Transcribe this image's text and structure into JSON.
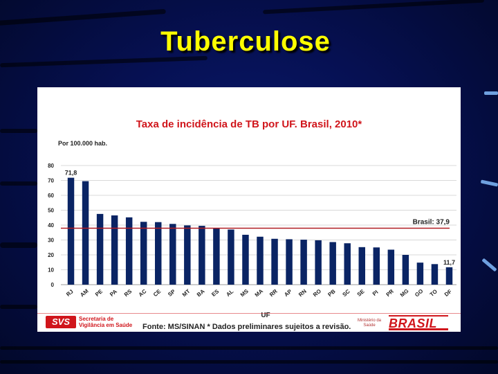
{
  "slide": {
    "title": "Tuberculose"
  },
  "footer": {
    "svs_logo": "SVS",
    "svs_line1": "Secretaria de",
    "svs_line2": "Vigilância em Saúde",
    "source": "Fonte: MS/SINAN * Dados preliminares sujeitos a revisão.",
    "ministry_line1": "Ministério da",
    "ministry_line2": "Saúde",
    "brasil_logo": "BRASIL"
  },
  "colors": {
    "bar": "#0a2464",
    "reference_line": "#b01c22",
    "title": "#d0151b",
    "slide_title": "#ffff00"
  },
  "chart_data": {
    "type": "bar",
    "title": "Taxa de incidência de TB por UF. Brasil, 2010*",
    "subtitle": "Por 100.000 hab.",
    "xlabel": "UF",
    "ylabel": "",
    "ylim": [
      0,
      80
    ],
    "yticks": [
      0,
      10,
      20,
      30,
      40,
      50,
      60,
      70,
      80
    ],
    "grid": true,
    "categories": [
      "RJ",
      "AM",
      "PE",
      "PA",
      "RS",
      "AC",
      "CE",
      "SP",
      "MT",
      "BA",
      "ES",
      "AL",
      "MS",
      "MA",
      "RR",
      "AP",
      "RN",
      "RO",
      "PB",
      "SC",
      "SE",
      "PI",
      "PR",
      "MG",
      "GO",
      "TO",
      "DF"
    ],
    "values": [
      71.8,
      69.5,
      47.5,
      46.5,
      45.2,
      42.2,
      42.0,
      40.8,
      39.8,
      39.5,
      38.0,
      37.0,
      33.5,
      32.2,
      30.8,
      30.5,
      30.2,
      29.8,
      28.6,
      27.8,
      25.2,
      25.0,
      23.5,
      20.0,
      14.8,
      13.8,
      11.7
    ],
    "data_labels": [
      {
        "category": "RJ",
        "text": "71,8"
      },
      {
        "category": "DF",
        "text": "11,7"
      }
    ],
    "reference_line": {
      "value": 37.9,
      "label": "Brasil: 37,9"
    }
  }
}
